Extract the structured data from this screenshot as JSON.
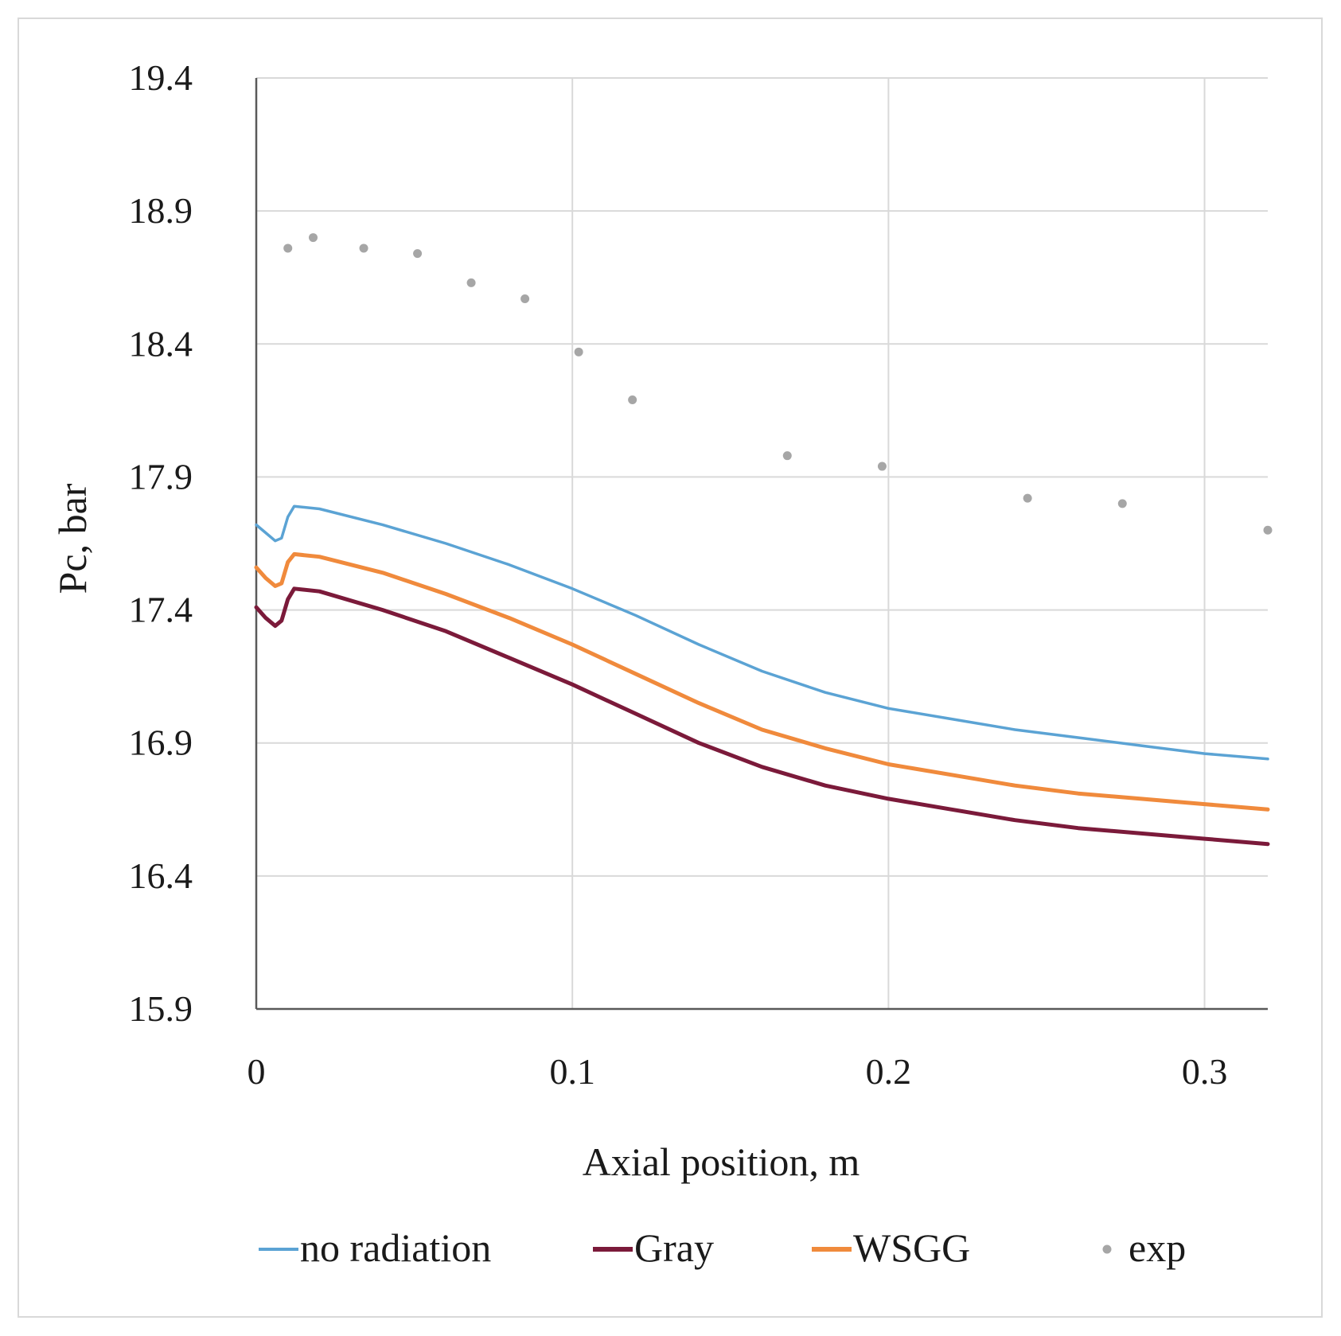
{
  "chart_data": {
    "type": "line",
    "xlabel": "Axial position, m",
    "ylabel": "Pc, bar",
    "xlim": [
      0,
      0.32
    ],
    "ylim": [
      15.9,
      19.4
    ],
    "xticks": [
      0,
      0.1,
      0.2,
      0.3
    ],
    "xtick_labels": [
      "0",
      "0.1",
      "0.2",
      "0.3"
    ],
    "yticks": [
      15.9,
      16.4,
      16.9,
      17.4,
      17.9,
      18.4,
      18.9,
      19.4
    ],
    "ytick_labels": [
      "15.9",
      "16.4",
      "16.9",
      "17.4",
      "17.9",
      "18.4",
      "18.9",
      "19.4"
    ],
    "grid": true,
    "legend_position": "bottom",
    "series": [
      {
        "name": "no radiation",
        "kind": "line",
        "color": "#5ba3d4",
        "x": [
          0,
          0.003,
          0.006,
          0.008,
          0.01,
          0.012,
          0.02,
          0.04,
          0.06,
          0.08,
          0.1,
          0.12,
          0.14,
          0.16,
          0.18,
          0.2,
          0.22,
          0.24,
          0.26,
          0.28,
          0.3,
          0.32
        ],
        "y": [
          17.72,
          17.69,
          17.66,
          17.67,
          17.75,
          17.79,
          17.78,
          17.72,
          17.65,
          17.57,
          17.48,
          17.38,
          17.27,
          17.17,
          17.09,
          17.03,
          16.99,
          16.95,
          16.92,
          16.89,
          16.86,
          16.84
        ]
      },
      {
        "name": "Gray",
        "kind": "line",
        "color": "#7b1a3a",
        "x": [
          0,
          0.003,
          0.006,
          0.008,
          0.01,
          0.012,
          0.02,
          0.04,
          0.06,
          0.08,
          0.1,
          0.12,
          0.14,
          0.16,
          0.18,
          0.2,
          0.22,
          0.24,
          0.26,
          0.28,
          0.3,
          0.32
        ],
        "y": [
          17.41,
          17.37,
          17.34,
          17.36,
          17.44,
          17.48,
          17.47,
          17.4,
          17.32,
          17.22,
          17.12,
          17.01,
          16.9,
          16.81,
          16.74,
          16.69,
          16.65,
          16.61,
          16.58,
          16.56,
          16.54,
          16.52
        ]
      },
      {
        "name": "WSGG",
        "kind": "line",
        "color": "#f08a3c",
        "x": [
          0,
          0.003,
          0.006,
          0.008,
          0.01,
          0.012,
          0.02,
          0.04,
          0.06,
          0.08,
          0.1,
          0.12,
          0.14,
          0.16,
          0.18,
          0.2,
          0.22,
          0.24,
          0.26,
          0.28,
          0.3,
          0.32
        ],
        "y": [
          17.56,
          17.52,
          17.49,
          17.5,
          17.58,
          17.61,
          17.6,
          17.54,
          17.46,
          17.37,
          17.27,
          17.16,
          17.05,
          16.95,
          16.88,
          16.82,
          16.78,
          16.74,
          16.71,
          16.69,
          16.67,
          16.65
        ]
      },
      {
        "name": "exp",
        "kind": "scatter",
        "color": "#a6a6a6",
        "x": [
          0.01,
          0.018,
          0.034,
          0.051,
          0.068,
          0.085,
          0.102,
          0.119,
          0.168,
          0.198,
          0.244,
          0.274,
          0.32
        ],
        "y": [
          18.76,
          18.8,
          18.76,
          18.74,
          18.63,
          18.57,
          18.37,
          18.19,
          17.98,
          17.94,
          17.82,
          17.8,
          17.7
        ]
      }
    ]
  }
}
